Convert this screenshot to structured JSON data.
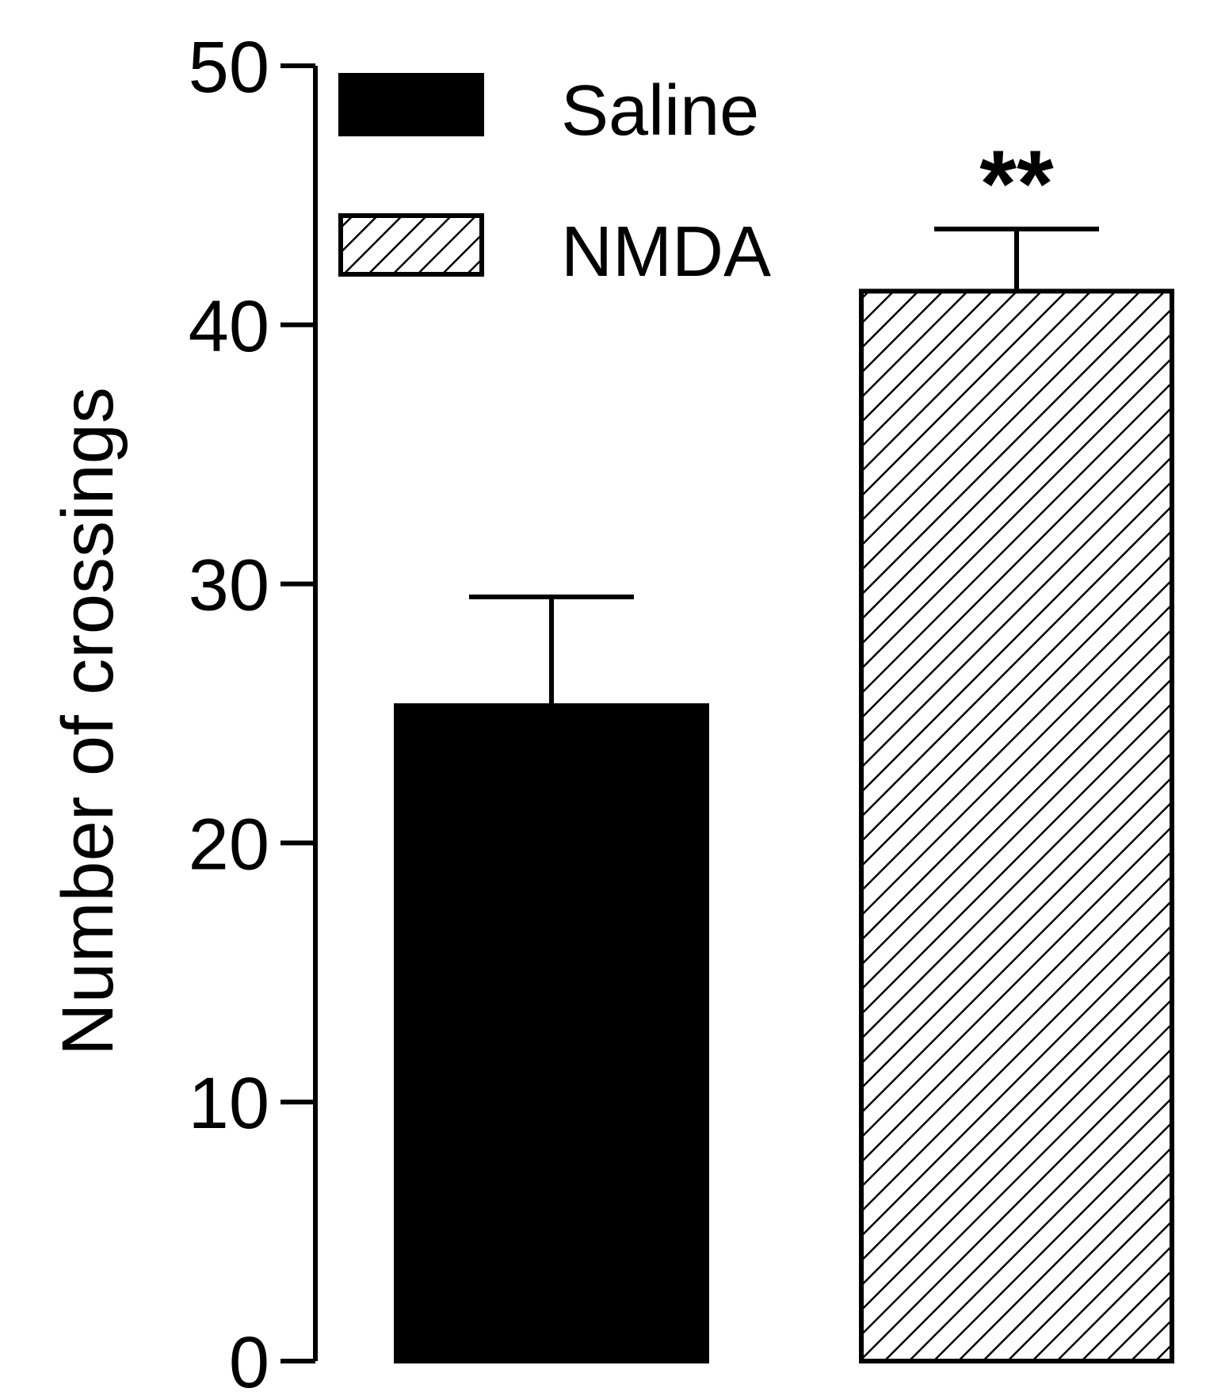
{
  "chart_data": {
    "type": "bar",
    "categories": [
      "Saline",
      "NMDA"
    ],
    "series": [
      {
        "name": "Saline",
        "values": [
          25.3,
          null
        ],
        "errors": [
          4.2,
          null
        ],
        "fill": "solid"
      },
      {
        "name": "NMDA",
        "values": [
          null,
          41.3
        ],
        "errors": [
          null,
          2.4
        ],
        "fill": "hatched"
      }
    ],
    "annotations": [
      {
        "category": "NMDA",
        "text": "**"
      }
    ],
    "ylabel": "Number of crossings",
    "xlabel": "",
    "ylim": [
      0,
      50
    ],
    "yticks": [
      "0",
      "10",
      "20",
      "30",
      "40",
      "50"
    ],
    "legend_position": "top-left",
    "grid": false,
    "colors": {
      "bar": "#000000",
      "background": "#ffffff"
    }
  }
}
